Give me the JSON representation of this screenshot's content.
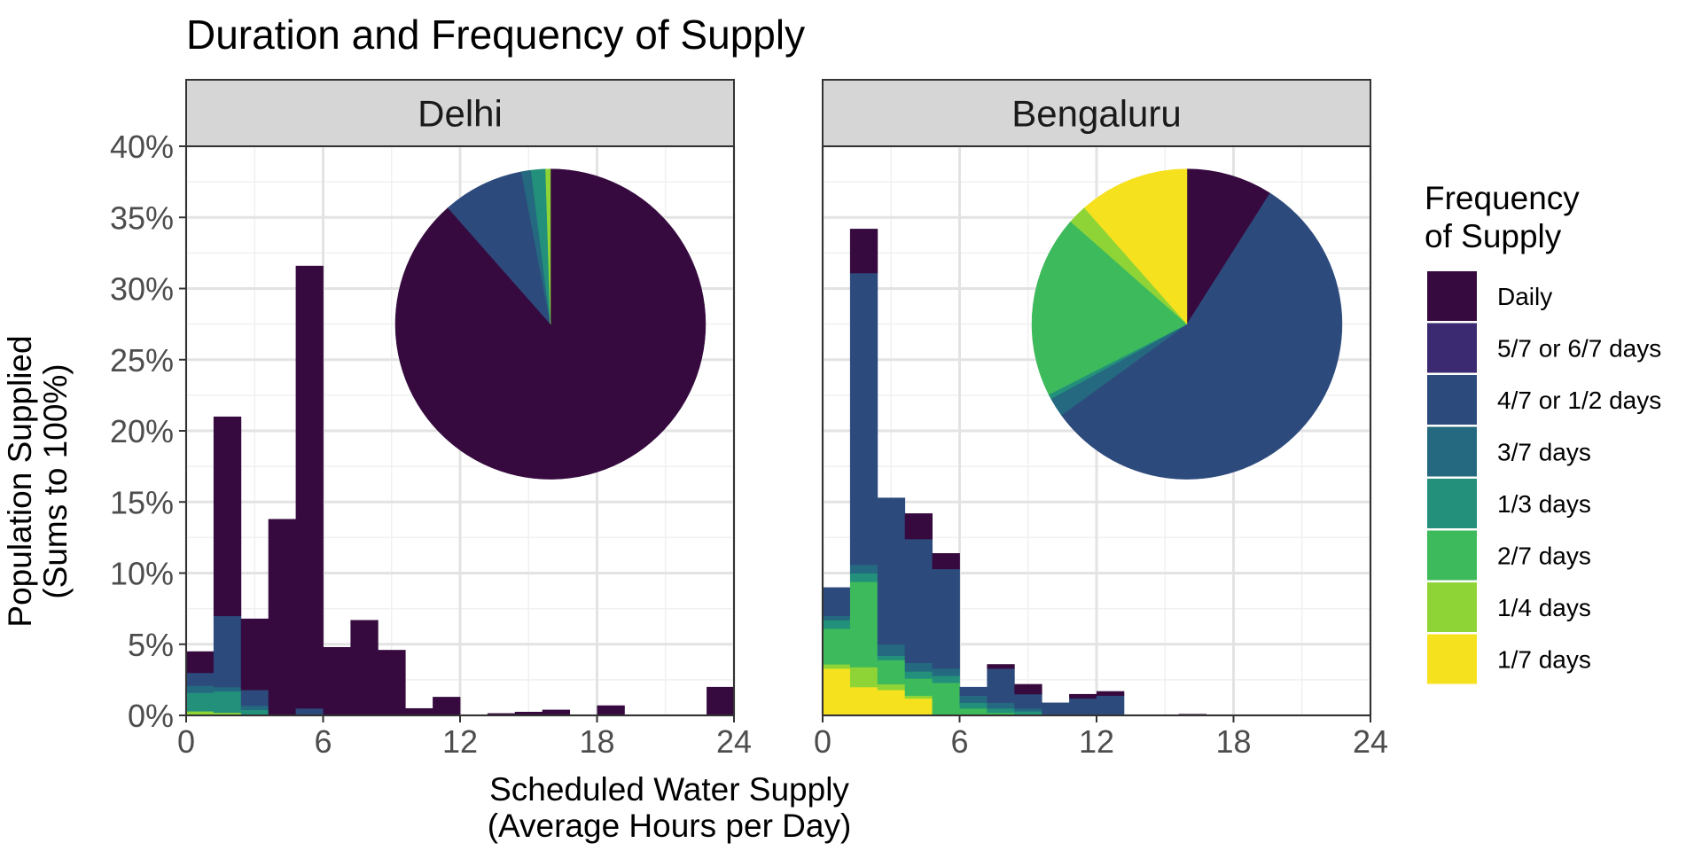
{
  "chart_data": {
    "type": "bar",
    "subtype": "stacked-histogram-facets-with-pie-insets",
    "title": "Duration and Frequency of Supply",
    "xlabel": [
      "Scheduled Water Supply",
      "(Average Hours per Day)"
    ],
    "ylabel": [
      "Population Supplied",
      "(Sums to 100%)"
    ],
    "xlim": [
      0,
      24
    ],
    "ylim": [
      0,
      40
    ],
    "x_ticks": [
      "0",
      "6",
      "12",
      "18",
      "24"
    ],
    "y_ticks": [
      "0%",
      "5%",
      "10%",
      "15%",
      "20%",
      "25%",
      "30%",
      "35%",
      "40%"
    ],
    "bin_width_hours": 1.2,
    "grid": true,
    "legend_position": "right",
    "legend": {
      "title": [
        "Frequency",
        "of Supply"
      ],
      "entries": [
        {
          "label": "Daily",
          "color": "#360a3f"
        },
        {
          "label": "5/7 or 6/7 days",
          "color": "#3b2a72"
        },
        {
          "label": "4/7 or 1/2 days",
          "color": "#2d4a7c"
        },
        {
          "label": "3/7 days",
          "color": "#24697f"
        },
        {
          "label": "1/3 days",
          "color": "#22907a"
        },
        {
          "label": "2/7 days",
          "color": "#3dba5b"
        },
        {
          "label": "1/4 days",
          "color": "#8fd436"
        },
        {
          "label": "1/7 days",
          "color": "#f6e11f"
        }
      ]
    },
    "facets": [
      {
        "name": "Delhi",
        "bins": [
          {
            "x0": 0.0,
            "stack": [
              1.5,
              0,
              0.9,
              0.5,
              1.3,
              0,
              0.3,
              0
            ]
          },
          {
            "x0": 1.2,
            "stack": [
              14.0,
              0,
              5.0,
              0.3,
              1.5,
              0,
              0.2,
              0
            ]
          },
          {
            "x0": 2.4,
            "stack": [
              5.0,
              0,
              1.1,
              0.3,
              0.4,
              0,
              0,
              0
            ]
          },
          {
            "x0": 3.6,
            "stack": [
              13.8,
              0,
              0,
              0,
              0,
              0,
              0,
              0
            ]
          },
          {
            "x0": 4.8,
            "stack": [
              31.1,
              0,
              0.5,
              0,
              0,
              0,
              0,
              0
            ]
          },
          {
            "x0": 6.0,
            "stack": [
              4.8,
              0,
              0,
              0,
              0,
              0,
              0,
              0
            ]
          },
          {
            "x0": 7.2,
            "stack": [
              6.7,
              0,
              0,
              0,
              0,
              0,
              0,
              0
            ]
          },
          {
            "x0": 8.4,
            "stack": [
              4.6,
              0,
              0,
              0,
              0,
              0,
              0,
              0
            ]
          },
          {
            "x0": 9.6,
            "stack": [
              0.5,
              0,
              0,
              0,
              0,
              0,
              0,
              0
            ]
          },
          {
            "x0": 10.8,
            "stack": [
              1.3,
              0,
              0,
              0,
              0,
              0,
              0,
              0
            ]
          },
          {
            "x0": 13.2,
            "stack": [
              0.15,
              0,
              0,
              0,
              0,
              0,
              0,
              0
            ]
          },
          {
            "x0": 14.4,
            "stack": [
              0.25,
              0,
              0,
              0,
              0,
              0,
              0,
              0
            ]
          },
          {
            "x0": 15.6,
            "stack": [
              0.4,
              0,
              0,
              0,
              0,
              0,
              0,
              0
            ]
          },
          {
            "x0": 18.0,
            "stack": [
              0.7,
              0,
              0,
              0,
              0,
              0,
              0,
              0
            ]
          },
          {
            "x0": 22.8,
            "stack": [
              2.0,
              0,
              0,
              0,
              0,
              0,
              0,
              0
            ]
          }
        ],
        "pie": [
          88.5,
          0,
          8.5,
          1.0,
          1.5,
          0,
          0.5,
          0
        ]
      },
      {
        "name": "Bengaluru",
        "bins": [
          {
            "x0": 0.0,
            "stack": [
              0,
              0,
              2.0,
              0.3,
              0.6,
              2.5,
              0.3,
              3.3
            ]
          },
          {
            "x0": 1.2,
            "stack": [
              3.1,
              0,
              20.5,
              0.6,
              0.6,
              6.0,
              1.4,
              2.0
            ]
          },
          {
            "x0": 2.4,
            "stack": [
              0,
              0,
              10.3,
              0.8,
              0.3,
              1.7,
              0.4,
              1.8
            ]
          },
          {
            "x0": 3.6,
            "stack": [
              1.8,
              0,
              8.7,
              0.6,
              0.5,
              1.2,
              0.2,
              1.2
            ]
          },
          {
            "x0": 4.8,
            "stack": [
              1.1,
              0,
              7.0,
              0.5,
              0.5,
              2.3,
              0,
              0
            ]
          },
          {
            "x0": 6.0,
            "stack": [
              0,
              0,
              0.6,
              0.5,
              0.4,
              0.5,
              0,
              0
            ]
          },
          {
            "x0": 7.2,
            "stack": [
              0.3,
              0,
              2.4,
              0.4,
              0.3,
              0.2,
              0,
              0
            ]
          },
          {
            "x0": 8.4,
            "stack": [
              0.7,
              0,
              1.0,
              0.2,
              0.2,
              0.1,
              0,
              0
            ]
          },
          {
            "x0": 9.6,
            "stack": [
              0,
              0,
              0.9,
              0,
              0,
              0,
              0,
              0
            ]
          },
          {
            "x0": 10.8,
            "stack": [
              0.3,
              0,
              1.2,
              0,
              0,
              0,
              0,
              0
            ]
          },
          {
            "x0": 12.0,
            "stack": [
              0.3,
              0,
              1.4,
              0,
              0,
              0,
              0,
              0
            ]
          },
          {
            "x0": 15.6,
            "stack": [
              0.1,
              0,
              0,
              0,
              0,
              0,
              0,
              0
            ]
          }
        ],
        "pie": [
          9.0,
          0,
          56.0,
          2.0,
          0.5,
          19.0,
          2.0,
          11.5
        ]
      }
    ]
  }
}
